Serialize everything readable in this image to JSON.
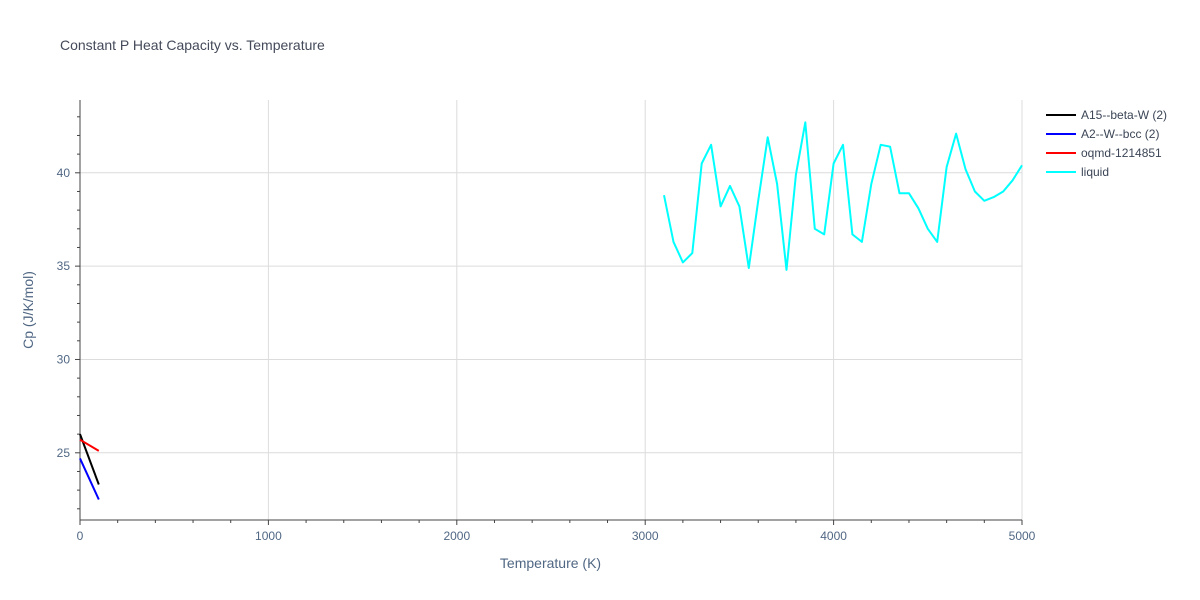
{
  "chart_data": {
    "type": "line",
    "title": "Constant P Heat Capacity vs. Temperature",
    "xlabel": "Temperature (K)",
    "ylabel": "Cp (J/K/mol)",
    "xlim": [
      0,
      5000
    ],
    "ylim": [
      21.4,
      43.9
    ],
    "xticks": [
      0,
      1000,
      2000,
      3000,
      4000,
      5000
    ],
    "xtick_labels": [
      "0",
      "1000",
      "2000",
      "3000",
      "4000",
      "5000"
    ],
    "yticks": [
      25,
      30,
      35,
      40
    ],
    "ytick_labels": [
      "25",
      "30",
      "35",
      "40"
    ],
    "grid": true,
    "legend_position": "top-right",
    "series": [
      {
        "name": "A15--beta-W (2)",
        "color": "#000000",
        "x": [
          0,
          100
        ],
        "y": [
          26.0,
          23.3
        ]
      },
      {
        "name": "A2--W--bcc (2)",
        "color": "#0000ff",
        "x": [
          0,
          100
        ],
        "y": [
          24.7,
          22.5
        ]
      },
      {
        "name": "oqmd-1214851",
        "color": "#ff0000",
        "x": [
          0,
          100
        ],
        "y": [
          25.7,
          25.1
        ]
      },
      {
        "name": "liquid",
        "color": "#00ffff",
        "x": [
          3100,
          3150,
          3200,
          3250,
          3300,
          3350,
          3400,
          3450,
          3500,
          3550,
          3600,
          3650,
          3700,
          3750,
          3800,
          3850,
          3900,
          3950,
          4000,
          4050,
          4100,
          4150,
          4200,
          4250,
          4300,
          4350,
          4400,
          4450,
          4500,
          4550,
          4600,
          4650,
          4700,
          4750,
          4800,
          4850,
          4900,
          4950,
          5000
        ],
        "y": [
          38.8,
          36.3,
          35.2,
          35.7,
          40.5,
          41.5,
          38.2,
          39.3,
          38.2,
          34.9,
          38.5,
          41.9,
          39.4,
          34.8,
          39.9,
          42.7,
          37.0,
          36.7,
          40.5,
          41.5,
          36.7,
          36.3,
          39.4,
          41.5,
          41.4,
          38.9,
          38.9,
          38.1,
          37.0,
          36.3,
          40.3,
          42.1,
          40.2,
          39.0,
          38.5,
          38.7,
          39.0,
          39.6,
          40.4
        ]
      }
    ]
  }
}
